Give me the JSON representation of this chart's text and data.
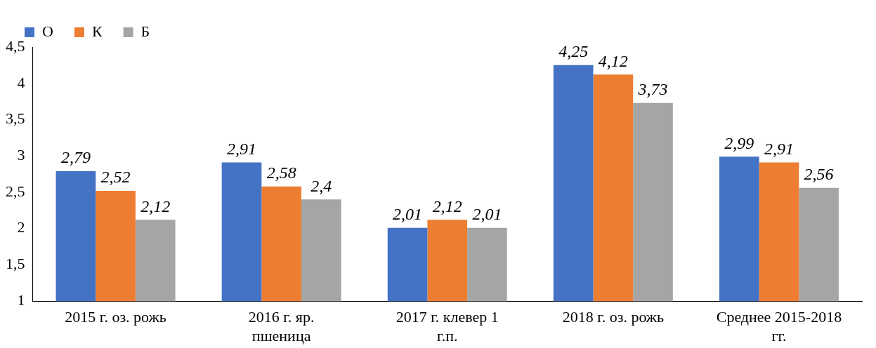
{
  "chart_data": {
    "type": "bar",
    "categories": [
      "2015 г. оз. рожь",
      "2016 г. яр. пшеница",
      "2017 г. клевер 1 г.п.",
      "2018 г. оз. рожь",
      "Среднее 2015-2018 гг."
    ],
    "series": [
      {
        "name": "О",
        "color": "#4472c4",
        "values": [
          2.79,
          2.91,
          2.01,
          4.25,
          2.99
        ],
        "value_labels": [
          "2,79",
          "2,91",
          "2,01",
          "4,25",
          "2,99"
        ]
      },
      {
        "name": "К",
        "color": "#ed7d31",
        "values": [
          2.52,
          2.58,
          2.12,
          4.12,
          2.91
        ],
        "value_labels": [
          "2,52",
          "2,58",
          "2,12",
          "4,12",
          "2,91"
        ]
      },
      {
        "name": "Б",
        "color": "#a5a5a5",
        "values": [
          2.12,
          2.4,
          2.01,
          3.73,
          2.56
        ],
        "value_labels": [
          "2,12",
          "2,4",
          "2,01",
          "3,73",
          "2,56"
        ]
      }
    ],
    "ylim": [
      1,
      4.5
    ],
    "yticks": [
      1,
      {
        "value": 1.5,
        "label": "1,5"
      },
      2,
      {
        "value": 2.5,
        "label": "2,5"
      },
      3,
      {
        "value": 3.5,
        "label": "3,5"
      },
      4,
      {
        "value": 4.5,
        "label": "4,5"
      }
    ],
    "grid": false,
    "legend": "top left"
  }
}
